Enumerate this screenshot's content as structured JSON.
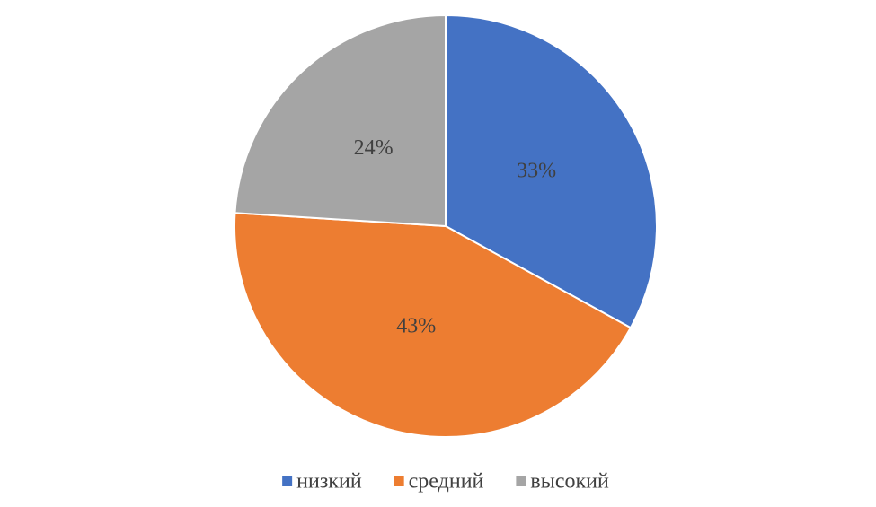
{
  "chart_data": {
    "type": "pie",
    "categories": [
      "низкий",
      "средний",
      "высокий"
    ],
    "values": [
      33,
      43,
      24
    ],
    "value_labels": [
      "33%",
      "43%",
      "24%"
    ],
    "colors": [
      "#4472c4",
      "#ed7d31",
      "#a5a5a5"
    ],
    "legend": "bottom"
  }
}
